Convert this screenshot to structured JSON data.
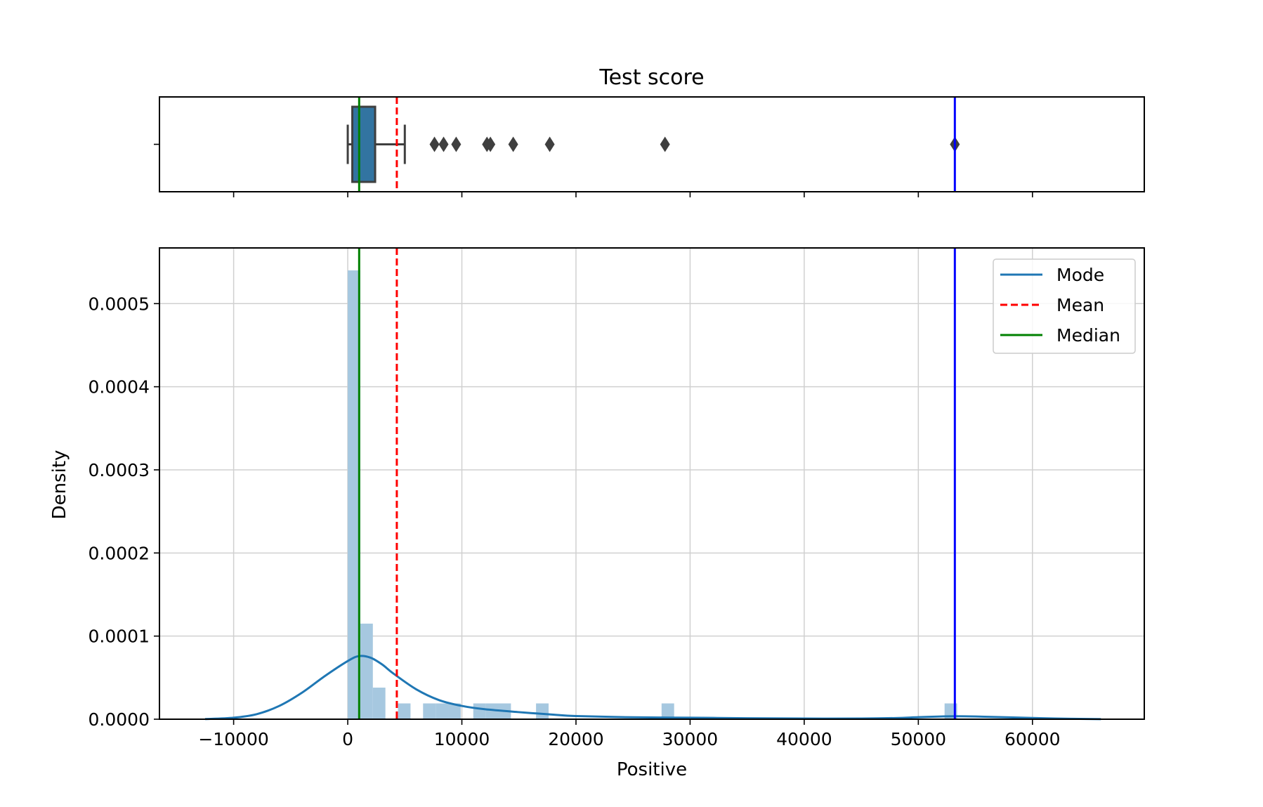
{
  "chart_data": [
    {
      "type": "box",
      "title": "Test score",
      "xlabel": "",
      "ylabel": "",
      "xlim": [
        -16500,
        69800
      ],
      "box": {
        "whisker_low": 0,
        "q1": 400,
        "median": 1000,
        "q3": 2400,
        "whisker_high": 5000,
        "color": "#3274a1"
      },
      "outliers": [
        7600,
        8400,
        9500,
        12200,
        12500,
        14500,
        17700,
        27800,
        53200
      ],
      "lines": {
        "mode": 53200,
        "mean": 4300,
        "median": 1000
      }
    },
    {
      "type": "histogram",
      "title": "",
      "xlabel": "Positive",
      "ylabel": "Density",
      "xlim": [
        -16500,
        69800
      ],
      "ylim": [
        0,
        0.000567
      ],
      "xticks": [
        -10000,
        0,
        10000,
        20000,
        30000,
        40000,
        50000,
        60000
      ],
      "xtick_labels": [
        "−10000",
        "0",
        "10000",
        "20000",
        "30000",
        "40000",
        "50000",
        "60000"
      ],
      "yticks": [
        0,
        0.0001,
        0.0002,
        0.0003,
        0.0004,
        0.0005
      ],
      "ytick_labels": [
        "0.0000",
        "0.0001",
        "0.0002",
        "0.0003",
        "0.0004",
        "0.0005"
      ],
      "grid": true,
      "bins": [
        {
          "x0": 0,
          "x1": 1100,
          "density": 0.00054
        },
        {
          "x0": 1100,
          "x1": 2200,
          "density": 0.000115
        },
        {
          "x0": 2200,
          "x1": 3300,
          "density": 3.8e-05
        },
        {
          "x0": 4400,
          "x1": 5500,
          "density": 1.9e-05
        },
        {
          "x0": 6600,
          "x1": 7700,
          "density": 1.9e-05
        },
        {
          "x0": 7700,
          "x1": 8800,
          "density": 1.9e-05
        },
        {
          "x0": 8800,
          "x1": 9900,
          "density": 1.9e-05
        },
        {
          "x0": 11000,
          "x1": 12100,
          "density": 1.9e-05
        },
        {
          "x0": 12100,
          "x1": 13200,
          "density": 1.9e-05
        },
        {
          "x0": 13200,
          "x1": 14300,
          "density": 1.9e-05
        },
        {
          "x0": 16500,
          "x1": 17600,
          "density": 1.9e-05
        },
        {
          "x0": 27500,
          "x1": 28600,
          "density": 1.9e-05
        },
        {
          "x0": 52300,
          "x1": 53400,
          "density": 1.9e-05
        }
      ],
      "kde": {
        "x": [
          -12500,
          -10000,
          -8000,
          -6000,
          -4000,
          -2000,
          0,
          1000,
          2000,
          3000,
          4000,
          6000,
          8000,
          10000,
          12000,
          15000,
          18000,
          20000,
          25000,
          30000,
          35000,
          40000,
          45000,
          48000,
          50000,
          52000,
          53200,
          55000,
          58000,
          62000,
          66000
        ],
        "y": [
          2e-07,
          1.8e-06,
          6e-06,
          1.6e-05,
          3.2e-05,
          5.2e-05,
          7e-05,
          7.6e-05,
          7.4e-05,
          6.6e-05,
          5.5e-05,
          3.6e-05,
          2.3e-05,
          1.6e-05,
          1.2e-05,
          8.5e-06,
          5.5e-06,
          3.8e-06,
          2.3e-06,
          1.8e-06,
          1.2e-06,
          8e-07,
          8e-07,
          1.4e-06,
          2.4e-06,
          3.3e-06,
          3.6e-06,
          3.3e-06,
          2.2e-06,
          8e-07,
          1e-07
        ]
      },
      "lines": [
        {
          "name": "Mode",
          "x": 53200,
          "color": "#0000ff",
          "style": "solid"
        },
        {
          "name": "Mean",
          "x": 4300,
          "color": "#ff0000",
          "style": "dashed"
        },
        {
          "name": "Median",
          "x": 1000,
          "color": "#008000",
          "style": "solid"
        }
      ],
      "legend": {
        "placement": "top-right",
        "entries": [
          {
            "label": "Mode",
            "color": "#1f77b4",
            "style": "solid"
          },
          {
            "label": "Mean",
            "color": "#ff0000",
            "style": "dashed"
          },
          {
            "label": "Median",
            "color": "#008000",
            "style": "solid"
          }
        ]
      },
      "colors": {
        "bars": "#a6c8e0",
        "kde": "#1f77b4",
        "grid": "#d0d0d0"
      }
    }
  ]
}
